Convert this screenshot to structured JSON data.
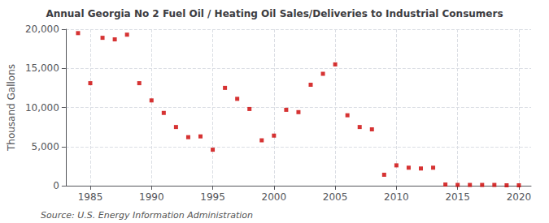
{
  "chart_data": {
    "type": "scatter",
    "title": "Annual Georgia No 2 Fuel Oil / Heating Oil Sales/Deliveries to Industrial Consumers",
    "ylabel": "Thousand Gallons",
    "annotations": [
      "Source: U.S. Energy Information Administration"
    ],
    "x": [
      1984,
      1985,
      1986,
      1987,
      1988,
      1989,
      1990,
      1991,
      1992,
      1993,
      1994,
      1995,
      1996,
      1997,
      1998,
      1999,
      2000,
      2001,
      2002,
      2003,
      2004,
      2005,
      2006,
      2007,
      2008,
      2009,
      2010,
      2011,
      2012,
      2013,
      2014,
      2015,
      2016,
      2017,
      2018,
      2019,
      2020
    ],
    "values": [
      19500,
      13100,
      18900,
      18700,
      19300,
      13100,
      10900,
      9300,
      7500,
      6200,
      6300,
      4600,
      12500,
      11100,
      9800,
      5800,
      6400,
      9700,
      9400,
      12900,
      14300,
      15500,
      9000,
      7500,
      7200,
      1400,
      2600,
      2300,
      2200,
      2300,
      150,
      100,
      100,
      100,
      100,
      50,
      50
    ],
    "color": "#cc0000",
    "marker": "square",
    "xlim": [
      1983,
      2021
    ],
    "xticks": [
      1985,
      1990,
      1995,
      2000,
      2005,
      2010,
      2015,
      2020
    ],
    "ylim": [
      0,
      20000
    ],
    "yticks": [
      0,
      {
        "value": 5000,
        "label": "5,000"
      },
      {
        "value": 10000,
        "label": "10,000"
      },
      {
        "value": 15000,
        "label": "15,000"
      },
      {
        "value": 20000,
        "label": "20,000"
      }
    ],
    "grid": true
  }
}
